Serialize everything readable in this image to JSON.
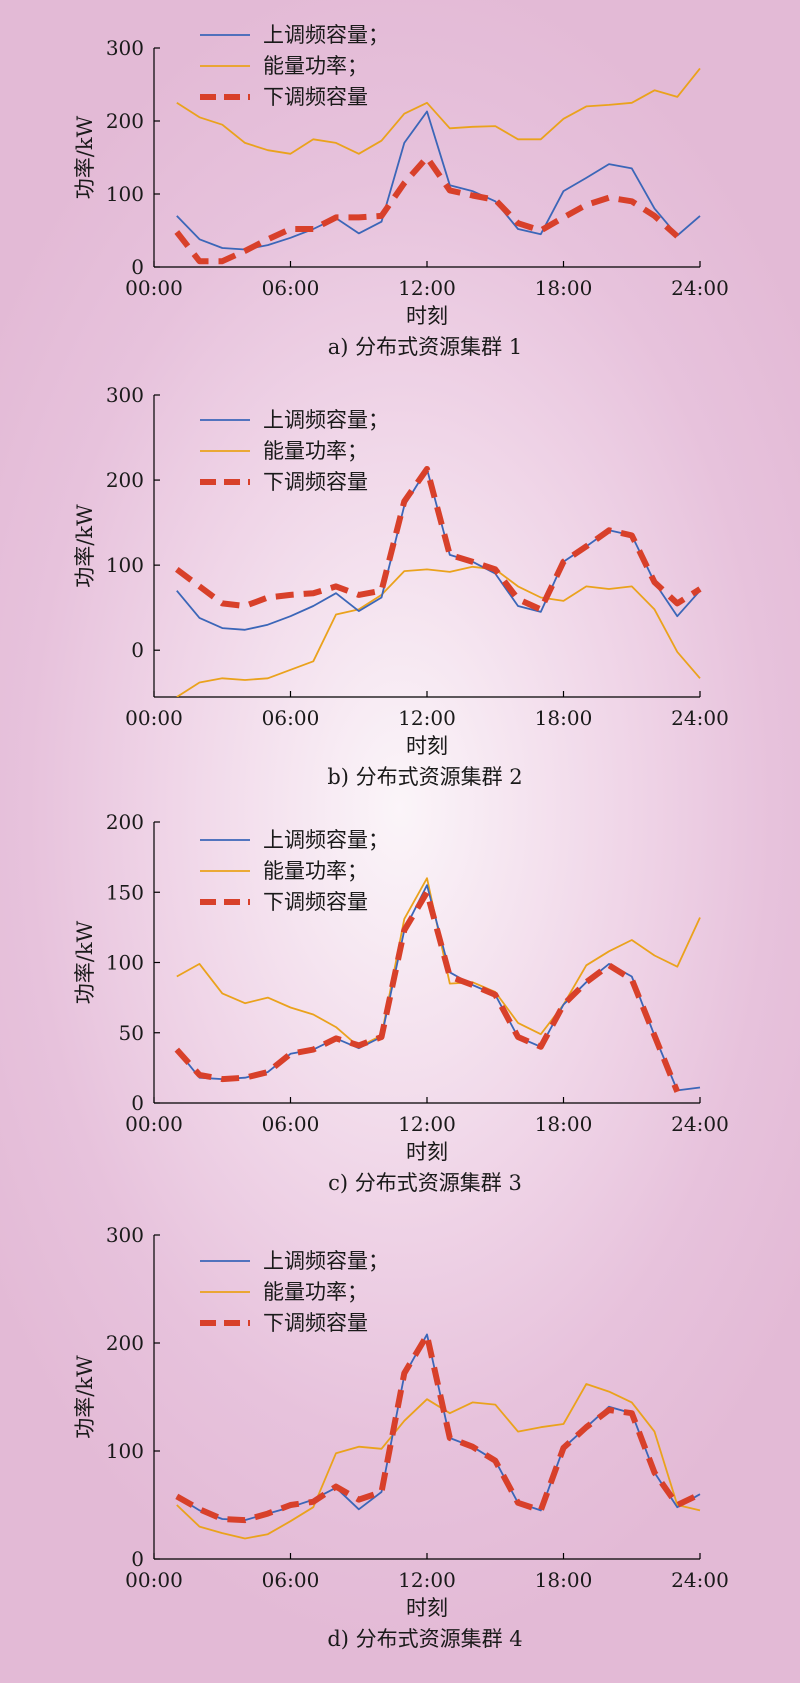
{
  "legend_labels": [
    "上调频容量；",
    "能量功率；",
    "下调频容量"
  ],
  "colors": {
    "up": "#3b66b8",
    "energy": "#eaa21c",
    "down": "#d8402a"
  },
  "chart_data": [
    {
      "type": "line",
      "caption": "a) 分布式资源集群 1",
      "xlabel": "时刻",
      "ylabel": "功率/kW",
      "xlim": [
        0,
        24
      ],
      "ylim": [
        0,
        300
      ],
      "x_ticks": [
        "00:00",
        "06:00",
        "12:00",
        "18:00",
        "24:00"
      ],
      "y_ticks": [
        0,
        100,
        200,
        300
      ],
      "legend_position": "top-left",
      "x": [
        1,
        2,
        3,
        4,
        5,
        6,
        7,
        8,
        9,
        10,
        11,
        12,
        13,
        14,
        15,
        16,
        17,
        18,
        19,
        20,
        21,
        22,
        23,
        24
      ],
      "series": [
        {
          "name": "上调频容量；",
          "style": "up",
          "values": [
            70,
            38,
            26,
            24,
            30,
            40,
            52,
            67,
            46,
            62,
            170,
            213,
            112,
            104,
            90,
            52,
            45,
            104,
            122,
            141,
            135,
            80,
            43,
            70
          ]
        },
        {
          "name": "能量功率；",
          "style": "energy",
          "values": [
            225,
            205,
            195,
            170,
            160,
            155,
            175,
            170,
            155,
            173,
            210,
            225,
            190,
            192,
            193,
            175,
            175,
            203,
            220,
            222,
            225,
            242,
            233,
            272
          ]
        },
        {
          "name": "下调频容量",
          "style": "down",
          "values": [
            48,
            8,
            8,
            22,
            38,
            52,
            52,
            68,
            68,
            70,
            115,
            150,
            105,
            98,
            92,
            60,
            50,
            68,
            85,
            95,
            90,
            70,
            42,
            null
          ]
        }
      ]
    },
    {
      "type": "line",
      "caption": "b) 分布式资源集群 2",
      "xlabel": "时刻",
      "ylabel": "功率/kW",
      "xlim": [
        0,
        24
      ],
      "ylim": [
        -55,
        300
      ],
      "x_ticks": [
        "00:00",
        "06:00",
        "12:00",
        "18:00",
        "24:00"
      ],
      "y_ticks": [
        0,
        100,
        200,
        300
      ],
      "legend_position": "top-left",
      "x": [
        1,
        2,
        3,
        4,
        5,
        6,
        7,
        8,
        9,
        10,
        11,
        12,
        13,
        14,
        15,
        16,
        17,
        18,
        19,
        20,
        21,
        22,
        23,
        24
      ],
      "series": [
        {
          "name": "上调频容量；",
          "style": "up",
          "values": [
            70,
            38,
            26,
            24,
            30,
            40,
            52,
            67,
            46,
            62,
            170,
            213,
            112,
            104,
            90,
            52,
            45,
            104,
            122,
            141,
            135,
            80,
            40,
            70
          ]
        },
        {
          "name": "能量功率；",
          "style": "energy",
          "values": [
            -55,
            -38,
            -33,
            -35,
            -33,
            -23,
            -13,
            42,
            48,
            65,
            93,
            95,
            92,
            98,
            95,
            75,
            62,
            58,
            75,
            72,
            75,
            48,
            -2,
            -33
          ]
        },
        {
          "name": "下调频容量",
          "style": "down",
          "values": [
            95,
            75,
            55,
            52,
            62,
            65,
            67,
            75,
            65,
            70,
            175,
            213,
            112,
            104,
            95,
            60,
            48,
            104,
            122,
            141,
            135,
            80,
            55,
            72
          ]
        }
      ]
    },
    {
      "type": "line",
      "caption": "c) 分布式资源集群 3",
      "xlabel": "时刻",
      "ylabel": "功率/kW",
      "xlim": [
        0,
        24
      ],
      "ylim": [
        0,
        200
      ],
      "x_ticks": [
        "00:00",
        "06:00",
        "12:00",
        "18:00",
        "24:00"
      ],
      "y_ticks": [
        0,
        50,
        100,
        150,
        200
      ],
      "legend_position": "top-left",
      "x": [
        1,
        2,
        3,
        4,
        5,
        6,
        7,
        8,
        9,
        10,
        11,
        12,
        13,
        14,
        15,
        16,
        17,
        18,
        19,
        20,
        21,
        22,
        23,
        24
      ],
      "series": [
        {
          "name": "上调频容量；",
          "style": "up",
          "values": [
            38,
            18,
            17,
            18,
            22,
            35,
            38,
            46,
            39,
            47,
            123,
            155,
            93,
            84,
            77,
            47,
            40,
            70,
            86,
            99,
            90,
            48,
            9,
            11
          ]
        },
        {
          "name": "能量功率；",
          "style": "energy",
          "values": [
            90,
            99,
            78,
            71,
            75,
            68,
            63,
            54,
            40,
            48,
            131,
            160,
            85,
            86,
            79,
            57,
            49,
            70,
            98,
            108,
            116,
            105,
            97,
            132
          ]
        },
        {
          "name": "下调频容量",
          "style": "down",
          "values": [
            38,
            20,
            17,
            18,
            22,
            35,
            38,
            46,
            41,
            47,
            123,
            150,
            90,
            84,
            77,
            47,
            40,
            70,
            86,
            98,
            88,
            48,
            8,
            null
          ]
        }
      ]
    },
    {
      "type": "line",
      "caption": "d) 分布式资源集群 4",
      "xlabel": "时刻",
      "ylabel": "功率/kW",
      "xlim": [
        0,
        24
      ],
      "ylim": [
        0,
        300
      ],
      "x_ticks": [
        "00:00",
        "06:00",
        "12:00",
        "18:00",
        "24:00"
      ],
      "y_ticks": [
        0,
        100,
        200,
        300
      ],
      "legend_position": "top-left",
      "x": [
        1,
        2,
        3,
        4,
        5,
        6,
        7,
        8,
        9,
        10,
        11,
        12,
        13,
        14,
        15,
        16,
        17,
        18,
        19,
        20,
        21,
        22,
        23,
        24
      ],
      "series": [
        {
          "name": "上调频容量；",
          "style": "up",
          "values": [
            58,
            45,
            37,
            36,
            42,
            48,
            55,
            66,
            46,
            62,
            170,
            208,
            112,
            104,
            91,
            52,
            45,
            103,
            122,
            141,
            135,
            80,
            48,
            60
          ]
        },
        {
          "name": "能量功率；",
          "style": "energy",
          "values": [
            50,
            30,
            24,
            19,
            23,
            35,
            48,
            98,
            104,
            102,
            128,
            148,
            135,
            145,
            143,
            118,
            122,
            125,
            162,
            155,
            145,
            118,
            50,
            45
          ]
        },
        {
          "name": "下调频容量",
          "style": "down",
          "values": [
            58,
            46,
            37,
            36,
            42,
            50,
            53,
            67,
            55,
            62,
            172,
            207,
            112,
            104,
            91,
            52,
            45,
            103,
            122,
            138,
            135,
            80,
            50,
            60
          ]
        }
      ]
    }
  ]
}
